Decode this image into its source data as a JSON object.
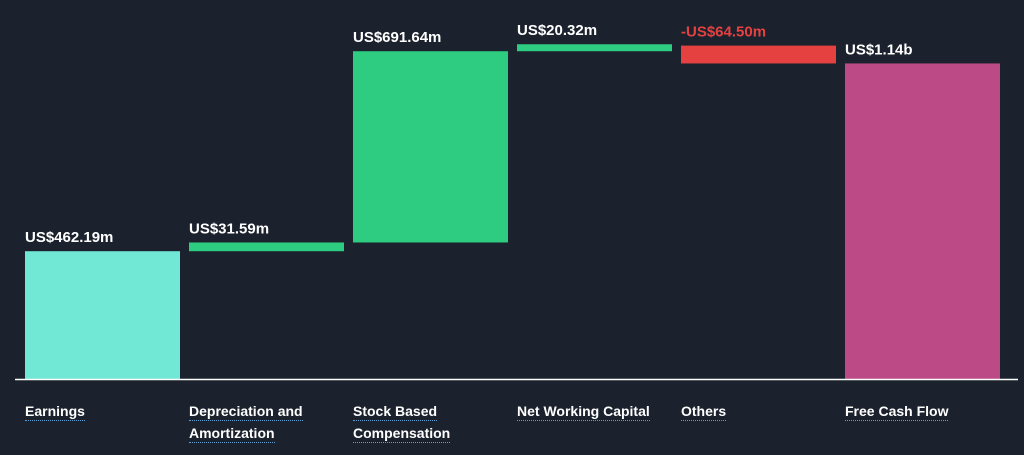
{
  "chart_data": {
    "type": "bar",
    "categories": [
      "Earnings",
      "Depreciation and Amortization",
      "Stock Based Compensation",
      "Net Working Capital",
      "Others",
      "Free Cash Flow"
    ],
    "values": [
      462.19,
      31.59,
      691.64,
      20.32,
      -64.5,
      1141.24
    ],
    "value_labels": [
      "US$462.19m",
      "US$31.59m",
      "US$691.64m",
      "US$20.32m",
      "-US$64.50m",
      "US$1.14b"
    ],
    "bar_roles": [
      "total",
      "delta",
      "delta",
      "delta",
      "delta",
      "total"
    ],
    "title": "",
    "xlabel": "",
    "ylabel": "",
    "unit": "US$ millions",
    "ylim": [
      0,
      1220
    ],
    "grid": false,
    "legend": "none",
    "colors": {
      "background": "#1b222d",
      "earnings": "#71e7d6",
      "increase": "#2ecc80",
      "decrease": "#e64141",
      "total": "#bb4a86",
      "value_text": "#ffffff",
      "negative_text": "#e64141",
      "axis": "#ffffff",
      "label_underline": "#5aa0d8"
    }
  }
}
